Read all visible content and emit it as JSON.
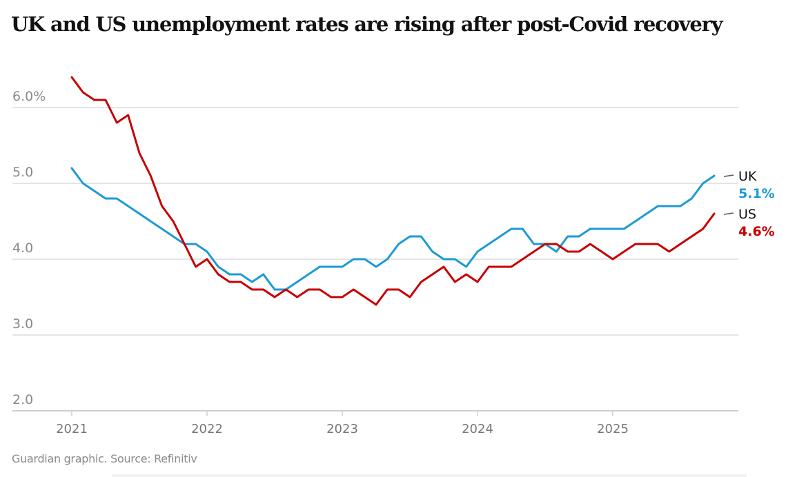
{
  "chart_data": {
    "type": "line",
    "title": "UK and US unemployment rates are rising after post-Covid recovery",
    "xlabel": "",
    "ylabel": "",
    "ylim": [
      2.0,
      6.4
    ],
    "yticks": [
      2.0,
      3.0,
      4.0,
      5.0,
      6.0
    ],
    "ytick_labels": [
      "2.0",
      "3.0",
      "4.0",
      "5.0",
      "6.0%"
    ],
    "xticks": [
      "2021",
      "2022",
      "2023",
      "2024",
      "2025"
    ],
    "x_start": "2021-01",
    "x_frequency": "monthly",
    "grid": true,
    "legend": "end-of-line labels, right",
    "series": [
      {
        "name": "UK",
        "color": "#1c9ad6",
        "end_label": "5.1%",
        "values": [
          5.2,
          5.0,
          4.9,
          4.8,
          4.8,
          4.7,
          4.6,
          4.5,
          4.4,
          4.3,
          4.2,
          4.2,
          4.1,
          3.9,
          3.8,
          3.8,
          3.7,
          3.8,
          3.6,
          3.6,
          3.7,
          3.8,
          3.9,
          3.9,
          3.9,
          4.0,
          4.0,
          3.9,
          4.0,
          4.2,
          4.3,
          4.3,
          4.1,
          4.0,
          4.0,
          3.9,
          4.1,
          4.2,
          4.3,
          4.4,
          4.4,
          4.2,
          4.2,
          4.1,
          4.3,
          4.3,
          4.4,
          4.4,
          4.4,
          4.4,
          4.5,
          4.6,
          4.7,
          4.7,
          4.7,
          4.8,
          5.0,
          5.1
        ]
      },
      {
        "name": "US",
        "color": "#c70000",
        "end_label": "4.6%",
        "values": [
          6.4,
          6.2,
          6.1,
          6.1,
          5.8,
          5.9,
          5.4,
          5.1,
          4.7,
          4.5,
          4.2,
          3.9,
          4.0,
          3.8,
          3.7,
          3.7,
          3.6,
          3.6,
          3.5,
          3.6,
          3.5,
          3.6,
          3.6,
          3.5,
          3.5,
          3.6,
          3.5,
          3.4,
          3.6,
          3.6,
          3.5,
          3.7,
          3.8,
          3.9,
          3.7,
          3.8,
          3.7,
          3.9,
          3.9,
          3.9,
          4.0,
          4.1,
          4.2,
          4.2,
          4.1,
          4.1,
          4.2,
          4.1,
          4.0,
          4.1,
          4.2,
          4.2,
          4.2,
          4.1,
          4.2,
          4.3,
          4.4,
          4.6
        ]
      }
    ]
  },
  "footer": "Guardian graphic. Source: Refinitiv"
}
